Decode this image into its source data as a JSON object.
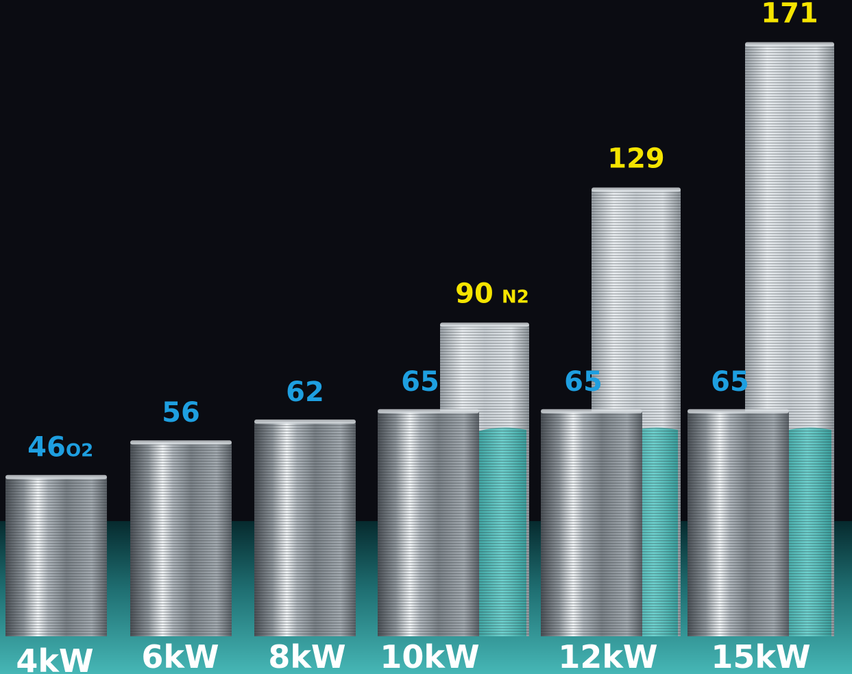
{
  "colors": {
    "background": "#0b0c12",
    "o2_label": "#1e9fe0",
    "n2_label": "#f5e400",
    "bar_metal": "#b8bec4",
    "water": "#3fb1ad",
    "category_label": "#ffffff"
  },
  "chart_data": {
    "type": "bar",
    "title": "",
    "xlabel": "",
    "ylabel": "",
    "ylim": [
      0,
      180
    ],
    "grid": false,
    "legend": "none",
    "categories": [
      "4kW",
      "6kW",
      "8kW",
      "10kW",
      "12kW",
      "15kW"
    ],
    "series": [
      {
        "name": "O2",
        "values": [
          46,
          56,
          62,
          65,
          65,
          65
        ],
        "color": "#1e9fe0"
      },
      {
        "name": "N2",
        "values": [
          null,
          null,
          null,
          90,
          129,
          171
        ],
        "color": "#f5e400"
      }
    ],
    "annotations": [
      "O2",
      "N2"
    ]
  }
}
